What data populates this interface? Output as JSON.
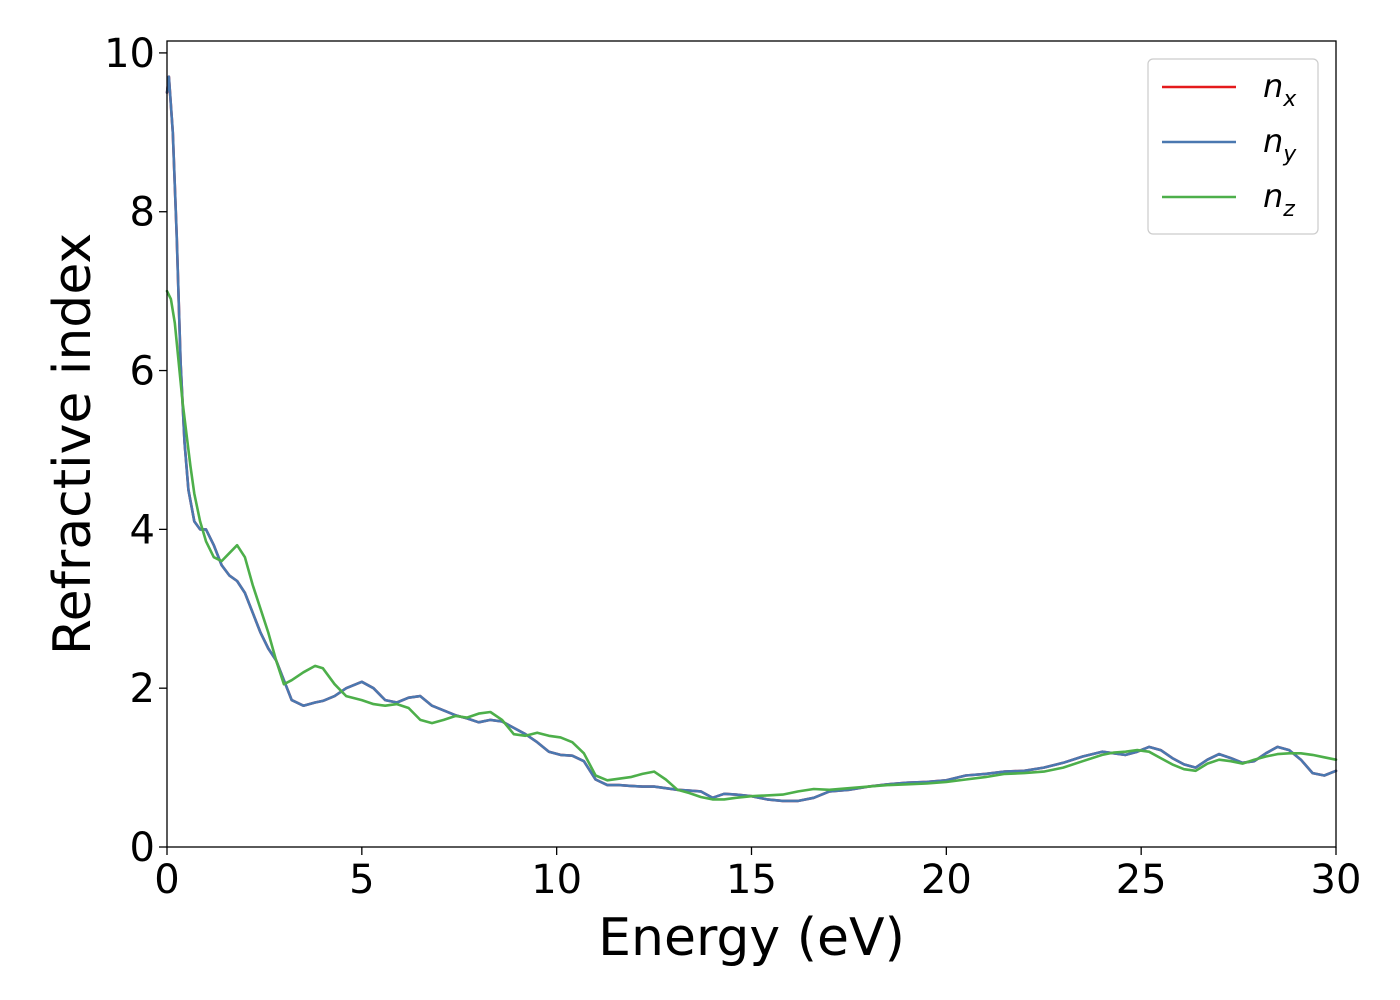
{
  "chart_data": {
    "type": "line",
    "title": "",
    "xlabel": "Energy (eV)",
    "ylabel": "Refractive index",
    "xlim": [
      0,
      30
    ],
    "ylim": [
      0,
      10.15
    ],
    "xticks": [
      0,
      5,
      10,
      15,
      20,
      25,
      30
    ],
    "yticks": [
      0,
      2,
      4,
      6,
      8,
      10
    ],
    "grid": false,
    "legend_position": "top-right",
    "series": [
      {
        "name": "n",
        "subscript": "x",
        "color": "#e41a1c",
        "x": [
          0.0,
          0.05,
          0.15,
          0.25,
          0.35,
          0.45,
          0.55,
          0.7,
          0.85,
          1.0,
          1.2,
          1.4,
          1.6,
          1.8,
          2.0,
          2.2,
          2.4,
          2.6,
          2.8,
          3.0,
          3.2,
          3.5,
          3.8,
          4.0,
          4.3,
          4.6,
          5.0,
          5.3,
          5.6,
          5.9,
          6.2,
          6.5,
          6.8,
          7.1,
          7.4,
          7.7,
          8.0,
          8.3,
          8.6,
          8.9,
          9.2,
          9.5,
          9.8,
          10.1,
          10.4,
          10.7,
          11.0,
          11.3,
          11.6,
          11.9,
          12.2,
          12.5,
          12.8,
          13.1,
          13.4,
          13.7,
          14.0,
          14.3,
          14.6,
          15.0,
          15.4,
          15.8,
          16.2,
          16.6,
          17.0,
          17.5,
          18.0,
          18.5,
          19.0,
          19.5,
          20.0,
          20.5,
          21.0,
          21.5,
          22.0,
          22.5,
          23.0,
          23.5,
          24.0,
          24.3,
          24.6,
          24.9,
          25.2,
          25.5,
          25.8,
          26.1,
          26.4,
          26.7,
          27.0,
          27.3,
          27.6,
          27.9,
          28.2,
          28.5,
          28.8,
          29.1,
          29.4,
          29.7,
          30.0
        ],
        "values": [
          9.5,
          9.7,
          9.0,
          7.7,
          6.1,
          5.1,
          4.5,
          4.1,
          4.0,
          4.0,
          3.8,
          3.55,
          3.42,
          3.35,
          3.2,
          2.95,
          2.7,
          2.5,
          2.35,
          2.1,
          1.85,
          1.78,
          1.82,
          1.84,
          1.9,
          2.0,
          2.08,
          2.0,
          1.85,
          1.82,
          1.88,
          1.9,
          1.78,
          1.72,
          1.66,
          1.62,
          1.57,
          1.6,
          1.58,
          1.5,
          1.42,
          1.32,
          1.2,
          1.16,
          1.15,
          1.08,
          0.85,
          0.78,
          0.78,
          0.77,
          0.76,
          0.76,
          0.74,
          0.72,
          0.71,
          0.7,
          0.62,
          0.67,
          0.66,
          0.64,
          0.6,
          0.58,
          0.58,
          0.62,
          0.7,
          0.72,
          0.76,
          0.79,
          0.81,
          0.82,
          0.84,
          0.9,
          0.92,
          0.95,
          0.96,
          1.0,
          1.06,
          1.14,
          1.2,
          1.18,
          1.16,
          1.2,
          1.26,
          1.22,
          1.12,
          1.04,
          1.0,
          1.1,
          1.17,
          1.12,
          1.06,
          1.08,
          1.18,
          1.26,
          1.22,
          1.1,
          0.93,
          0.9,
          0.96
        ]
      },
      {
        "name": "n",
        "subscript": "y",
        "color": "#4a78b0",
        "x": [
          0.0,
          0.05,
          0.15,
          0.25,
          0.35,
          0.45,
          0.55,
          0.7,
          0.85,
          1.0,
          1.2,
          1.4,
          1.6,
          1.8,
          2.0,
          2.2,
          2.4,
          2.6,
          2.8,
          3.0,
          3.2,
          3.5,
          3.8,
          4.0,
          4.3,
          4.6,
          5.0,
          5.3,
          5.6,
          5.9,
          6.2,
          6.5,
          6.8,
          7.1,
          7.4,
          7.7,
          8.0,
          8.3,
          8.6,
          8.9,
          9.2,
          9.5,
          9.8,
          10.1,
          10.4,
          10.7,
          11.0,
          11.3,
          11.6,
          11.9,
          12.2,
          12.5,
          12.8,
          13.1,
          13.4,
          13.7,
          14.0,
          14.3,
          14.6,
          15.0,
          15.4,
          15.8,
          16.2,
          16.6,
          17.0,
          17.5,
          18.0,
          18.5,
          19.0,
          19.5,
          20.0,
          20.5,
          21.0,
          21.5,
          22.0,
          22.5,
          23.0,
          23.5,
          24.0,
          24.3,
          24.6,
          24.9,
          25.2,
          25.5,
          25.8,
          26.1,
          26.4,
          26.7,
          27.0,
          27.3,
          27.6,
          27.9,
          28.2,
          28.5,
          28.8,
          29.1,
          29.4,
          29.7,
          30.0
        ],
        "values": [
          9.5,
          9.7,
          9.0,
          7.7,
          6.1,
          5.1,
          4.5,
          4.1,
          4.0,
          4.0,
          3.8,
          3.55,
          3.42,
          3.35,
          3.2,
          2.95,
          2.7,
          2.5,
          2.35,
          2.1,
          1.85,
          1.78,
          1.82,
          1.84,
          1.9,
          2.0,
          2.08,
          2.0,
          1.85,
          1.82,
          1.88,
          1.9,
          1.78,
          1.72,
          1.66,
          1.62,
          1.57,
          1.6,
          1.58,
          1.5,
          1.42,
          1.32,
          1.2,
          1.16,
          1.15,
          1.08,
          0.85,
          0.78,
          0.78,
          0.77,
          0.76,
          0.76,
          0.74,
          0.72,
          0.71,
          0.7,
          0.62,
          0.67,
          0.66,
          0.64,
          0.6,
          0.58,
          0.58,
          0.62,
          0.7,
          0.72,
          0.76,
          0.79,
          0.81,
          0.82,
          0.84,
          0.9,
          0.92,
          0.95,
          0.96,
          1.0,
          1.06,
          1.14,
          1.2,
          1.18,
          1.16,
          1.2,
          1.26,
          1.22,
          1.12,
          1.04,
          1.0,
          1.1,
          1.17,
          1.12,
          1.06,
          1.08,
          1.18,
          1.26,
          1.22,
          1.1,
          0.93,
          0.9,
          0.96
        ]
      },
      {
        "name": "n",
        "subscript": "z",
        "color": "#4daf4a",
        "x": [
          0.0,
          0.1,
          0.2,
          0.3,
          0.4,
          0.5,
          0.6,
          0.7,
          0.85,
          1.0,
          1.2,
          1.4,
          1.6,
          1.8,
          2.0,
          2.2,
          2.4,
          2.6,
          2.8,
          3.0,
          3.2,
          3.5,
          3.8,
          4.0,
          4.3,
          4.6,
          5.0,
          5.3,
          5.6,
          5.9,
          6.2,
          6.5,
          6.8,
          7.1,
          7.4,
          7.7,
          8.0,
          8.3,
          8.6,
          8.9,
          9.2,
          9.5,
          9.8,
          10.1,
          10.4,
          10.7,
          11.0,
          11.3,
          11.6,
          11.9,
          12.2,
          12.5,
          12.8,
          13.1,
          13.4,
          13.7,
          14.0,
          14.3,
          14.6,
          15.0,
          15.4,
          15.8,
          16.2,
          16.6,
          17.0,
          17.5,
          18.0,
          18.5,
          19.0,
          19.5,
          20.0,
          20.5,
          21.0,
          21.5,
          22.0,
          22.5,
          23.0,
          23.5,
          24.0,
          24.3,
          24.6,
          24.9,
          25.2,
          25.5,
          25.8,
          26.1,
          26.4,
          26.7,
          27.0,
          27.3,
          27.6,
          27.9,
          28.2,
          28.5,
          28.8,
          29.1,
          29.4,
          29.7,
          30.0
        ],
        "values": [
          7.0,
          6.9,
          6.6,
          6.1,
          5.6,
          5.2,
          4.8,
          4.45,
          4.1,
          3.85,
          3.65,
          3.6,
          3.7,
          3.8,
          3.65,
          3.3,
          3.0,
          2.7,
          2.35,
          2.05,
          2.1,
          2.2,
          2.28,
          2.25,
          2.05,
          1.9,
          1.85,
          1.8,
          1.78,
          1.8,
          1.75,
          1.6,
          1.56,
          1.6,
          1.65,
          1.63,
          1.68,
          1.7,
          1.6,
          1.42,
          1.4,
          1.44,
          1.4,
          1.38,
          1.32,
          1.18,
          0.9,
          0.84,
          0.86,
          0.88,
          0.92,
          0.95,
          0.85,
          0.72,
          0.68,
          0.63,
          0.6,
          0.6,
          0.62,
          0.64,
          0.65,
          0.66,
          0.7,
          0.73,
          0.72,
          0.74,
          0.76,
          0.78,
          0.79,
          0.8,
          0.82,
          0.85,
          0.88,
          0.92,
          0.93,
          0.95,
          1.0,
          1.08,
          1.16,
          1.19,
          1.2,
          1.22,
          1.2,
          1.12,
          1.04,
          0.98,
          0.96,
          1.05,
          1.1,
          1.08,
          1.05,
          1.1,
          1.14,
          1.17,
          1.18,
          1.18,
          1.16,
          1.13,
          1.1
        ]
      }
    ]
  }
}
